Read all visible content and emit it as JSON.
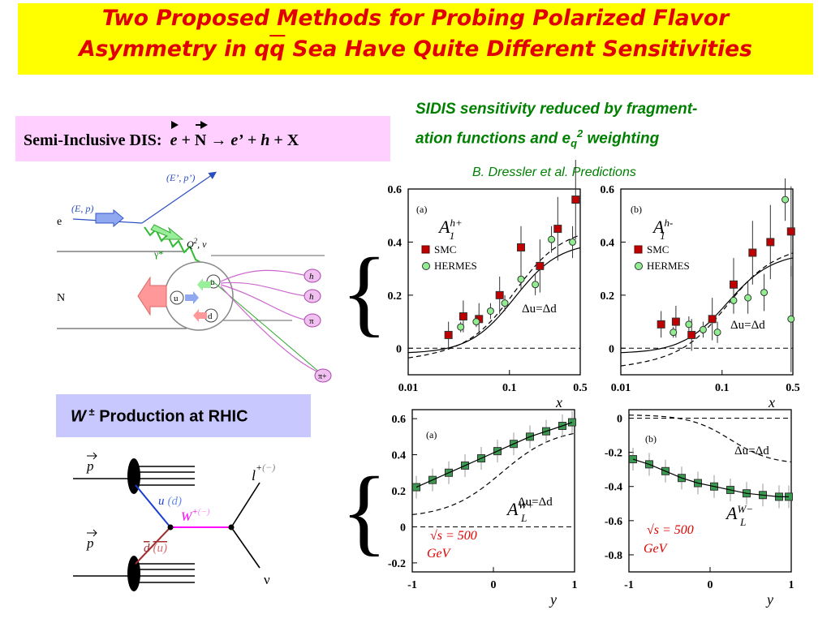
{
  "title": {
    "line1": "Two Proposed Methods for Probing Polarized Flavor",
    "line2_a": "Asymmetry in q",
    "line2_b": "q",
    "line2_c": " Sea Have Quite Different Sensitivities"
  },
  "sidis_box": {
    "label": "Semi-Inclusive DIS:",
    "e": "e",
    "plus1": " + ",
    "N": "N",
    "arrow": " → ",
    "eprime": "e’",
    "plus2": " + ",
    "h": "h",
    "plus3": " + X"
  },
  "sidis_note": {
    "line1": "SIDIS sensitivity reduced by fragment-",
    "line2_a": "ation functions and e",
    "line2_sub": "q",
    "line2_sup": "2",
    "line2_b": " weighting"
  },
  "predictions": "B. Dressler et al. Predictions",
  "w_box": {
    "w": "W",
    "pm": " ±",
    "label": " Production at RHIC"
  },
  "sidis_diagram": {
    "beam_in": "(E, p)",
    "beam_out": "(E’, p’)",
    "e": "e",
    "N": "N",
    "photon": "γ*",
    "q2": "Q",
    "q2_sup": "2",
    "nu": ", ν",
    "quarks": [
      "u",
      "u",
      "d"
    ],
    "hadrons": [
      "h",
      "h",
      "π",
      "π+"
    ],
    "colors": {
      "arrow": "#6a8ee8",
      "photon": "#44cc44",
      "hadron": "#cc66cc",
      "big_arrow": "#ff9999"
    }
  },
  "w_diagram": {
    "p_top": "p",
    "p_bottom": "p",
    "u": "u",
    "d_paren": "(d)",
    "dbar": "d",
    "ubar_paren": "(u)",
    "W": "W",
    "W_sup_plus": "+",
    "W_sup_minus": "(−)",
    "l": "l",
    "l_sup_plus": "+",
    "l_sup_minus": "(−)",
    "nu": "ν",
    "colors": {
      "u_line": "#1a3fd0",
      "d_line": "#a03030",
      "W_line": "#ff00ff"
    }
  },
  "chart_data": [
    {
      "id": "A1_hplus",
      "type": "scatter",
      "panel": "(a)",
      "label": "A",
      "label_sub": "1",
      "label_sup": "h+",
      "xlabel": "x",
      "x_scale": "log",
      "xlim": [
        0.01,
        0.5
      ],
      "ylim": [
        -0.1,
        0.6
      ],
      "xticks": [
        "0.01",
        "0.1",
        "0.5"
      ],
      "yticks": [
        "0",
        "0.2",
        "0.4",
        "0.6"
      ],
      "legend": [
        "SMC",
        "HERMES"
      ],
      "annotation": "Δu=Δd",
      "series": [
        {
          "name": "SMC",
          "marker": "square",
          "color": "#c00000",
          "x": [
            0.025,
            0.035,
            0.05,
            0.08,
            0.13,
            0.2,
            0.3,
            0.45
          ],
          "y": [
            0.05,
            0.12,
            0.11,
            0.2,
            0.38,
            0.31,
            0.45,
            0.56
          ],
          "err": [
            0.05,
            0.06,
            0.06,
            0.07,
            0.08,
            0.1,
            0.12,
            0.15
          ]
        },
        {
          "name": "HERMES",
          "marker": "circle",
          "color": "#90ee90",
          "x": [
            0.033,
            0.047,
            0.065,
            0.09,
            0.13,
            0.18,
            0.26,
            0.42
          ],
          "y": [
            0.08,
            0.1,
            0.14,
            0.17,
            0.26,
            0.24,
            0.41,
            0.4
          ],
          "err": [
            0.02,
            0.02,
            0.03,
            0.03,
            0.04,
            0.04,
            0.05,
            0.06
          ]
        }
      ]
    },
    {
      "id": "A1_hminus",
      "type": "scatter",
      "panel": "(b)",
      "label": "A",
      "label_sub": "1",
      "label_sup": "h-",
      "xlabel": "x",
      "x_scale": "log",
      "xlim": [
        0.01,
        0.5
      ],
      "ylim": [
        -0.1,
        0.6
      ],
      "xticks": [
        "0.01",
        "0.1",
        "0.5"
      ],
      "yticks": [
        "0",
        "0.2",
        "0.4",
        "0.6"
      ],
      "legend": [
        "SMC",
        "HERMES"
      ],
      "annotation": "Δu=Δd",
      "series": [
        {
          "name": "SMC",
          "marker": "square",
          "color": "#c00000",
          "x": [
            0.025,
            0.035,
            0.05,
            0.08,
            0.13,
            0.2,
            0.3,
            0.48
          ],
          "y": [
            0.09,
            0.1,
            0.05,
            0.11,
            0.24,
            0.36,
            0.4,
            0.44
          ],
          "err": [
            0.05,
            0.06,
            0.06,
            0.08,
            0.1,
            0.12,
            0.14,
            0.17
          ]
        },
        {
          "name": "HERMES",
          "marker": "circle",
          "color": "#90ee90",
          "x": [
            0.033,
            0.047,
            0.065,
            0.09,
            0.13,
            0.18,
            0.26,
            0.42,
            0.48
          ],
          "y": [
            0.06,
            0.09,
            0.07,
            0.06,
            0.18,
            0.19,
            0.21,
            0.56,
            0.11
          ],
          "err": [
            0.02,
            0.03,
            0.03,
            0.04,
            0.05,
            0.06,
            0.07,
            0.08,
            0.2
          ]
        }
      ]
    },
    {
      "id": "AL_Wplus",
      "type": "line",
      "panel": "(a)",
      "label": "A",
      "label_sub": "L",
      "label_sup": "W+",
      "xlabel": "y",
      "xlim": [
        -1,
        1
      ],
      "ylim": [
        -0.25,
        0.65
      ],
      "xticks": [
        "-1",
        "0",
        "1"
      ],
      "yticks": [
        "-0.2",
        "0",
        "0.2",
        "0.4",
        "0.6"
      ],
      "annotation": "Δu=Δd",
      "note_line1": "√s = 500",
      "note_line2": "GeV",
      "series": [
        {
          "name": "",
          "marker": "square",
          "color": "#3a9a50",
          "x": [
            -0.95,
            -0.75,
            -0.55,
            -0.35,
            -0.15,
            0.05,
            0.25,
            0.45,
            0.65,
            0.85,
            0.97
          ],
          "y": [
            0.22,
            0.26,
            0.3,
            0.34,
            0.38,
            0.42,
            0.46,
            0.5,
            0.53,
            0.56,
            0.58
          ]
        }
      ]
    },
    {
      "id": "AL_Wminus",
      "type": "line",
      "panel": "(b)",
      "label": "A",
      "label_sub": "L",
      "label_sup": "W−",
      "xlabel": "y",
      "xlim": [
        -1,
        1
      ],
      "ylim": [
        -0.9,
        0.05
      ],
      "xticks": [
        "-1",
        "0",
        "1"
      ],
      "yticks": [
        "-0.8",
        "-0.6",
        "-0.4",
        "-0.2",
        "0"
      ],
      "annotation": "Δu=Δd",
      "note_line1": "√s = 500",
      "note_line2": "GeV",
      "series": [
        {
          "name": "",
          "marker": "square",
          "color": "#3a9a50",
          "x": [
            -0.95,
            -0.75,
            -0.55,
            -0.35,
            -0.15,
            0.05,
            0.25,
            0.45,
            0.65,
            0.85,
            0.97
          ],
          "y": [
            -0.24,
            -0.27,
            -0.31,
            -0.35,
            -0.38,
            -0.4,
            -0.42,
            -0.44,
            -0.45,
            -0.46,
            -0.46
          ]
        }
      ]
    }
  ]
}
